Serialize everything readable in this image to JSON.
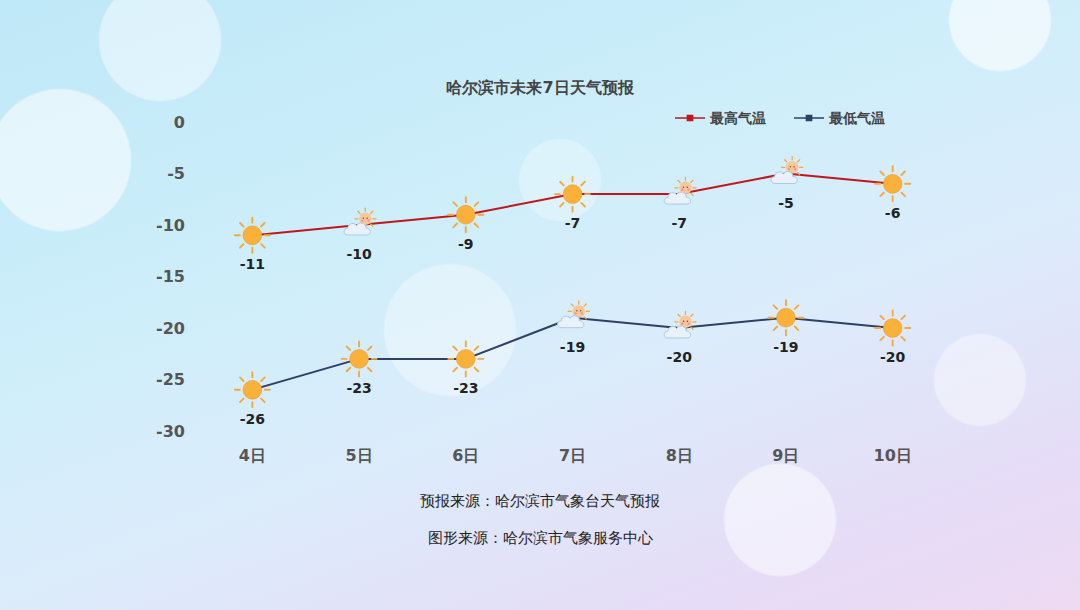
{
  "chart_data": {
    "type": "line",
    "title": "哈尔滨市未来7日天气预报",
    "categories": [
      "4日",
      "5日",
      "6日",
      "7日",
      "8日",
      "9日",
      "10日"
    ],
    "series": [
      {
        "name": "最高气温",
        "color": "#c0161c",
        "values": [
          -11,
          -10,
          -9,
          -7,
          -7,
          -5,
          -6
        ]
      },
      {
        "name": "最低气温",
        "color": "#2e4066",
        "values": [
          -26,
          -23,
          -23,
          -19,
          -20,
          -19,
          -20
        ]
      }
    ],
    "ylim": [
      -30,
      0
    ],
    "yticks": [
      -30,
      -25,
      -20,
      -15,
      -10,
      -5,
      0
    ],
    "grid": false,
    "legend": "upper right",
    "data_labels": true,
    "annotations": [
      "预报来源：哈尔滨市气象台天气预报",
      "图形来源：哈尔滨市气象服务中心"
    ]
  }
}
